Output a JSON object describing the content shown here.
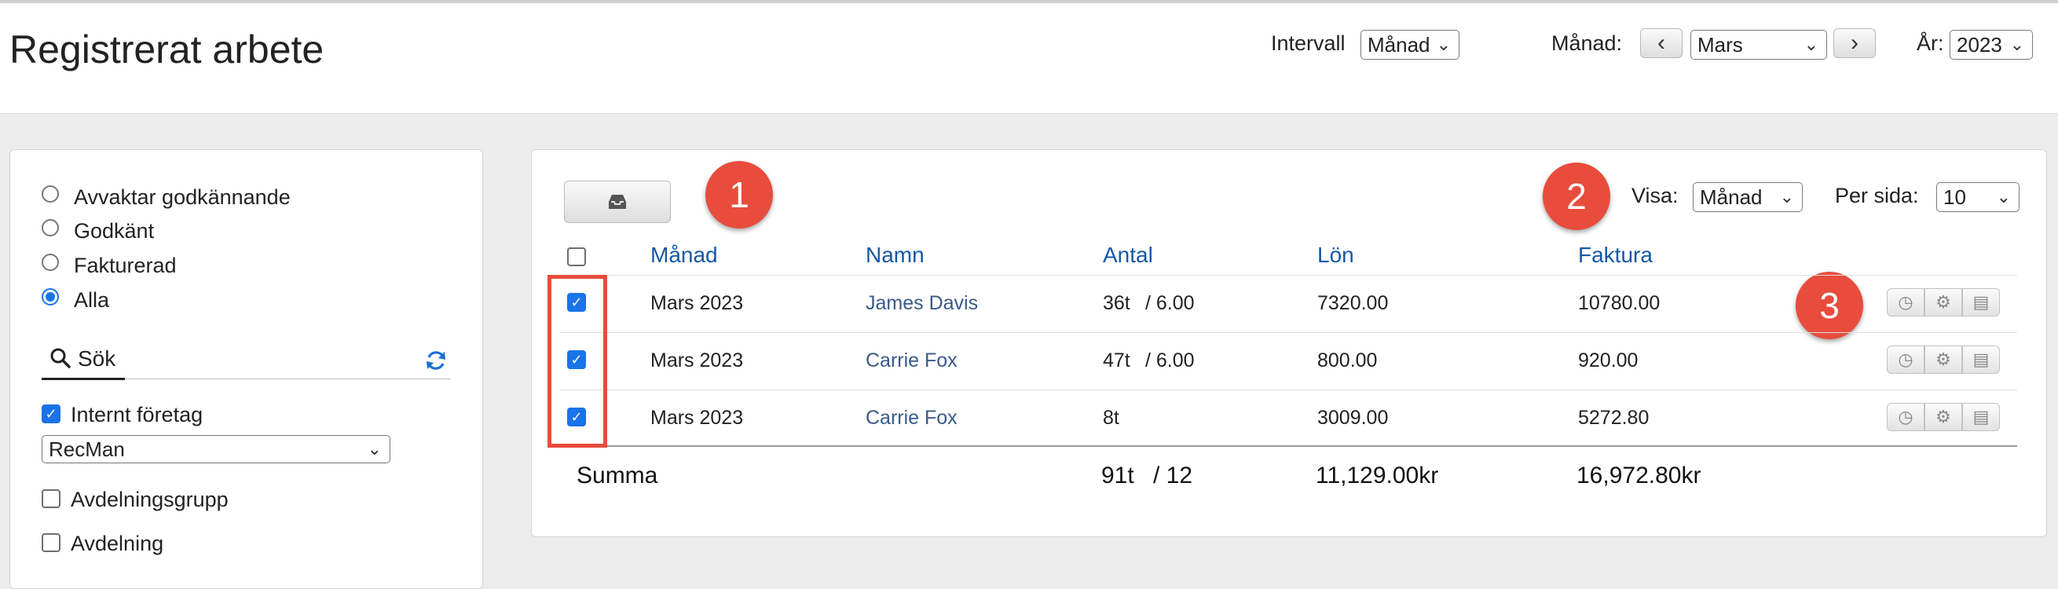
{
  "header": {
    "title": "Registrerat arbete",
    "interval_label": "Intervall",
    "interval_value": "Månad",
    "month_label": "Månad:",
    "month_value": "Mars",
    "prev_icon": "‹",
    "next_icon": "›",
    "year_label": "År:",
    "year_value": "2023"
  },
  "filters": {
    "status_options": [
      {
        "label": "Avvaktar godkännande",
        "selected": false
      },
      {
        "label": "Godkänt",
        "selected": false
      },
      {
        "label": "Fakturerad",
        "selected": false
      },
      {
        "label": "Alla",
        "selected": true
      }
    ],
    "search_label": "Sök",
    "internal_company_label": "Internt företag",
    "internal_company_checked": true,
    "company_value": "RecMan",
    "department_group_label": "Avdelningsgrupp",
    "department_label": "Avdelning"
  },
  "toolbar": {
    "show_label": "Visa:",
    "show_value": "Månad",
    "per_page_label": "Per sida:",
    "per_page_value": "10"
  },
  "table": {
    "headers": [
      "Månad",
      "Namn",
      "Antal",
      "Lön",
      "Faktura"
    ],
    "rows": [
      {
        "month": "Mars 2023",
        "name": "James Davis",
        "hours": "36t",
        "days": "/ 6.00",
        "salary": "7320.00",
        "invoice": "10780.00",
        "checked": true
      },
      {
        "month": "Mars 2023",
        "name": "Carrie Fox",
        "hours": "47t",
        "days": "/ 6.00",
        "salary": "800.00",
        "invoice": "920.00",
        "checked": true
      },
      {
        "month": "Mars 2023",
        "name": "Carrie Fox",
        "hours": "8t",
        "days": "",
        "salary": "3009.00",
        "invoice": "5272.80",
        "checked": true
      }
    ],
    "summary": {
      "label": "Summa",
      "hours": "91t",
      "days": "/ 12",
      "salary": "11,129.00kr",
      "invoice": "16,972.80kr"
    }
  },
  "annotations": {
    "badge_1": "1",
    "badge_2": "2",
    "badge_3": "3",
    "badge_color": "#e84c3c"
  },
  "icons": {
    "export": "inbox-tray-icon",
    "search": "search-icon",
    "refresh": "refresh-icon",
    "row_actions": [
      "clock-icon",
      "gear-icon",
      "briefcase-icon"
    ]
  },
  "colors": {
    "accent": "#1a73e8",
    "header_link": "#1558a6",
    "name_link": "#3a5a88",
    "highlight": "#e74c3c"
  }
}
